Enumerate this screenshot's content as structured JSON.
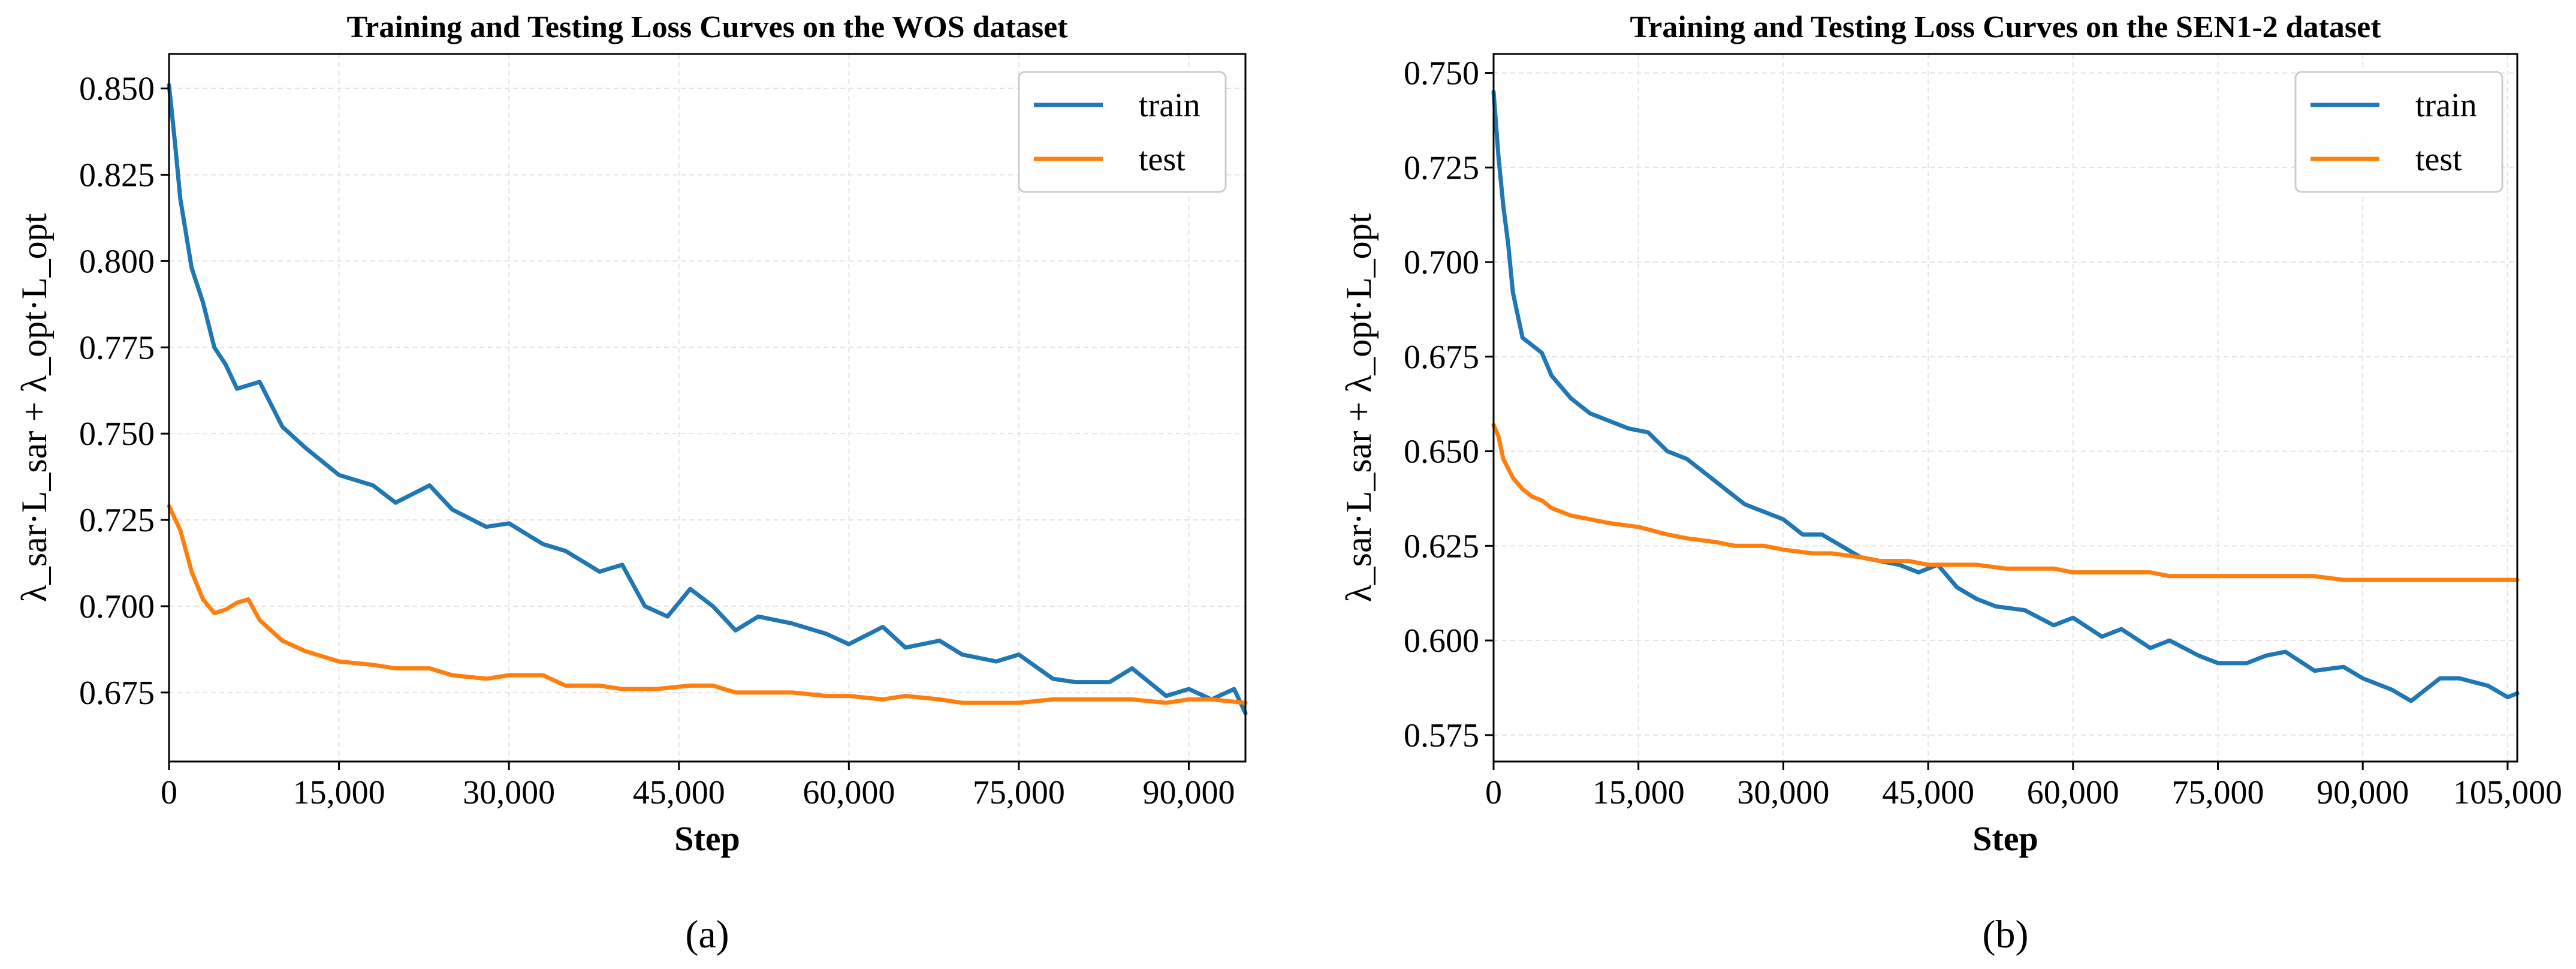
{
  "chart_data": [
    {
      "type": "line",
      "title": "Training and Testing Loss Curves on the WOS dataset",
      "xlabel": "Step",
      "ylabel": "λ_sar·L_sar + λ_opt·L_opt",
      "caption": "(a)",
      "xlim": [
        0,
        95000
      ],
      "ylim": [
        0.655,
        0.86
      ],
      "xticks": [
        0,
        15000,
        30000,
        45000,
        60000,
        75000,
        90000
      ],
      "xtick_labels": [
        "0",
        "15,000",
        "30,000",
        "45,000",
        "60,000",
        "75,000",
        "90,000"
      ],
      "yticks": [
        0.675,
        0.7,
        0.725,
        0.75,
        0.775,
        0.8,
        0.825,
        0.85
      ],
      "ytick_labels": [
        "0.675",
        "0.700",
        "0.725",
        "0.750",
        "0.775",
        "0.800",
        "0.825",
        "0.850"
      ],
      "grid": true,
      "legend": "top-right",
      "series": [
        {
          "name": "train",
          "color": "#1f77b4",
          "x": [
            0,
            500,
            1000,
            2000,
            3000,
            4000,
            5000,
            6000,
            8000,
            10000,
            12000,
            15000,
            18000,
            20000,
            23000,
            25000,
            28000,
            30000,
            33000,
            35000,
            38000,
            40000,
            42000,
            44000,
            46000,
            48000,
            50000,
            52000,
            55000,
            58000,
            60000,
            63000,
            65000,
            68000,
            70000,
            73000,
            75000,
            78000,
            80000,
            83000,
            85000,
            88000,
            90000,
            92000,
            94000,
            95000
          ],
          "y": [
            0.851,
            0.835,
            0.818,
            0.798,
            0.788,
            0.775,
            0.77,
            0.763,
            0.765,
            0.752,
            0.746,
            0.738,
            0.735,
            0.73,
            0.735,
            0.728,
            0.723,
            0.724,
            0.718,
            0.716,
            0.71,
            0.712,
            0.7,
            0.697,
            0.705,
            0.7,
            0.693,
            0.697,
            0.695,
            0.692,
            0.689,
            0.694,
            0.688,
            0.69,
            0.686,
            0.684,
            0.686,
            0.679,
            0.678,
            0.678,
            0.682,
            0.674,
            0.676,
            0.673,
            0.676,
            0.669
          ]
        },
        {
          "name": "test",
          "color": "#ff7f0e",
          "x": [
            0,
            1000,
            2000,
            3000,
            4000,
            5000,
            6000,
            7000,
            8000,
            10000,
            12000,
            15000,
            18000,
            20000,
            23000,
            25000,
            28000,
            30000,
            33000,
            35000,
            38000,
            40000,
            43000,
            46000,
            48000,
            50000,
            53000,
            55000,
            58000,
            60000,
            63000,
            65000,
            68000,
            70000,
            73000,
            75000,
            78000,
            80000,
            83000,
            85000,
            88000,
            90000,
            92000,
            95000
          ],
          "y": [
            0.729,
            0.722,
            0.71,
            0.702,
            0.698,
            0.699,
            0.701,
            0.702,
            0.696,
            0.69,
            0.687,
            0.684,
            0.683,
            0.682,
            0.682,
            0.68,
            0.679,
            0.68,
            0.68,
            0.677,
            0.677,
            0.676,
            0.676,
            0.677,
            0.677,
            0.675,
            0.675,
            0.675,
            0.674,
            0.674,
            0.673,
            0.674,
            0.673,
            0.672,
            0.672,
            0.672,
            0.673,
            0.673,
            0.673,
            0.673,
            0.672,
            0.673,
            0.673,
            0.672
          ]
        }
      ]
    },
    {
      "type": "line",
      "title": "Training and Testing Loss Curves on the SEN1-2 dataset",
      "xlabel": "Step",
      "ylabel": "λ_sar·L_sar + λ_opt·L_opt",
      "caption": "(b)",
      "xlim": [
        0,
        106000
      ],
      "ylim": [
        0.568,
        0.755
      ],
      "xticks": [
        0,
        15000,
        30000,
        45000,
        60000,
        75000,
        90000,
        105000
      ],
      "xtick_labels": [
        "0",
        "15,000",
        "30,000",
        "45,000",
        "60,000",
        "75,000",
        "90,000",
        "105,000"
      ],
      "yticks": [
        0.575,
        0.6,
        0.625,
        0.65,
        0.675,
        0.7,
        0.725,
        0.75
      ],
      "ytick_labels": [
        "0.575",
        "0.600",
        "0.625",
        "0.650",
        "0.675",
        "0.700",
        "0.725",
        "0.750"
      ],
      "grid": true,
      "legend": "top-right",
      "series": [
        {
          "name": "train",
          "color": "#1f77b4",
          "x": [
            0,
            500,
            1000,
            1500,
            2000,
            3000,
            4000,
            5000,
            6000,
            8000,
            10000,
            12000,
            14000,
            16000,
            18000,
            20000,
            22000,
            24000,
            26000,
            28000,
            30000,
            32000,
            34000,
            36000,
            38000,
            40000,
            42000,
            44000,
            46000,
            48000,
            50000,
            52000,
            55000,
            58000,
            60000,
            63000,
            65000,
            68000,
            70000,
            73000,
            75000,
            78000,
            80000,
            82000,
            85000,
            88000,
            90000,
            93000,
            95000,
            98000,
            100000,
            103000,
            105000,
            106000
          ],
          "y": [
            0.745,
            0.728,
            0.715,
            0.705,
            0.692,
            0.68,
            0.678,
            0.676,
            0.67,
            0.664,
            0.66,
            0.658,
            0.656,
            0.655,
            0.65,
            0.648,
            0.644,
            0.64,
            0.636,
            0.634,
            0.632,
            0.628,
            0.628,
            0.625,
            0.622,
            0.621,
            0.62,
            0.618,
            0.62,
            0.614,
            0.611,
            0.609,
            0.608,
            0.604,
            0.606,
            0.601,
            0.603,
            0.598,
            0.6,
            0.596,
            0.594,
            0.594,
            0.596,
            0.597,
            0.592,
            0.593,
            0.59,
            0.587,
            0.584,
            0.59,
            0.59,
            0.588,
            0.585,
            0.586
          ]
        },
        {
          "name": "test",
          "color": "#ff7f0e",
          "x": [
            0,
            500,
            1000,
            2000,
            3000,
            4000,
            5000,
            6000,
            8000,
            10000,
            12000,
            15000,
            18000,
            20000,
            23000,
            25000,
            28000,
            30000,
            33000,
            35000,
            38000,
            40000,
            43000,
            45000,
            48000,
            50000,
            53000,
            55000,
            58000,
            60000,
            63000,
            65000,
            68000,
            70000,
            73000,
            75000,
            78000,
            80000,
            83000,
            85000,
            88000,
            90000,
            93000,
            95000,
            98000,
            100000,
            103000,
            106000
          ],
          "y": [
            0.657,
            0.654,
            0.648,
            0.643,
            0.64,
            0.638,
            0.637,
            0.635,
            0.633,
            0.632,
            0.631,
            0.63,
            0.628,
            0.627,
            0.626,
            0.625,
            0.625,
            0.624,
            0.623,
            0.623,
            0.622,
            0.621,
            0.621,
            0.62,
            0.62,
            0.62,
            0.619,
            0.619,
            0.619,
            0.618,
            0.618,
            0.618,
            0.618,
            0.617,
            0.617,
            0.617,
            0.617,
            0.617,
            0.617,
            0.617,
            0.616,
            0.616,
            0.616,
            0.616,
            0.616,
            0.616,
            0.616,
            0.616
          ]
        }
      ]
    }
  ]
}
